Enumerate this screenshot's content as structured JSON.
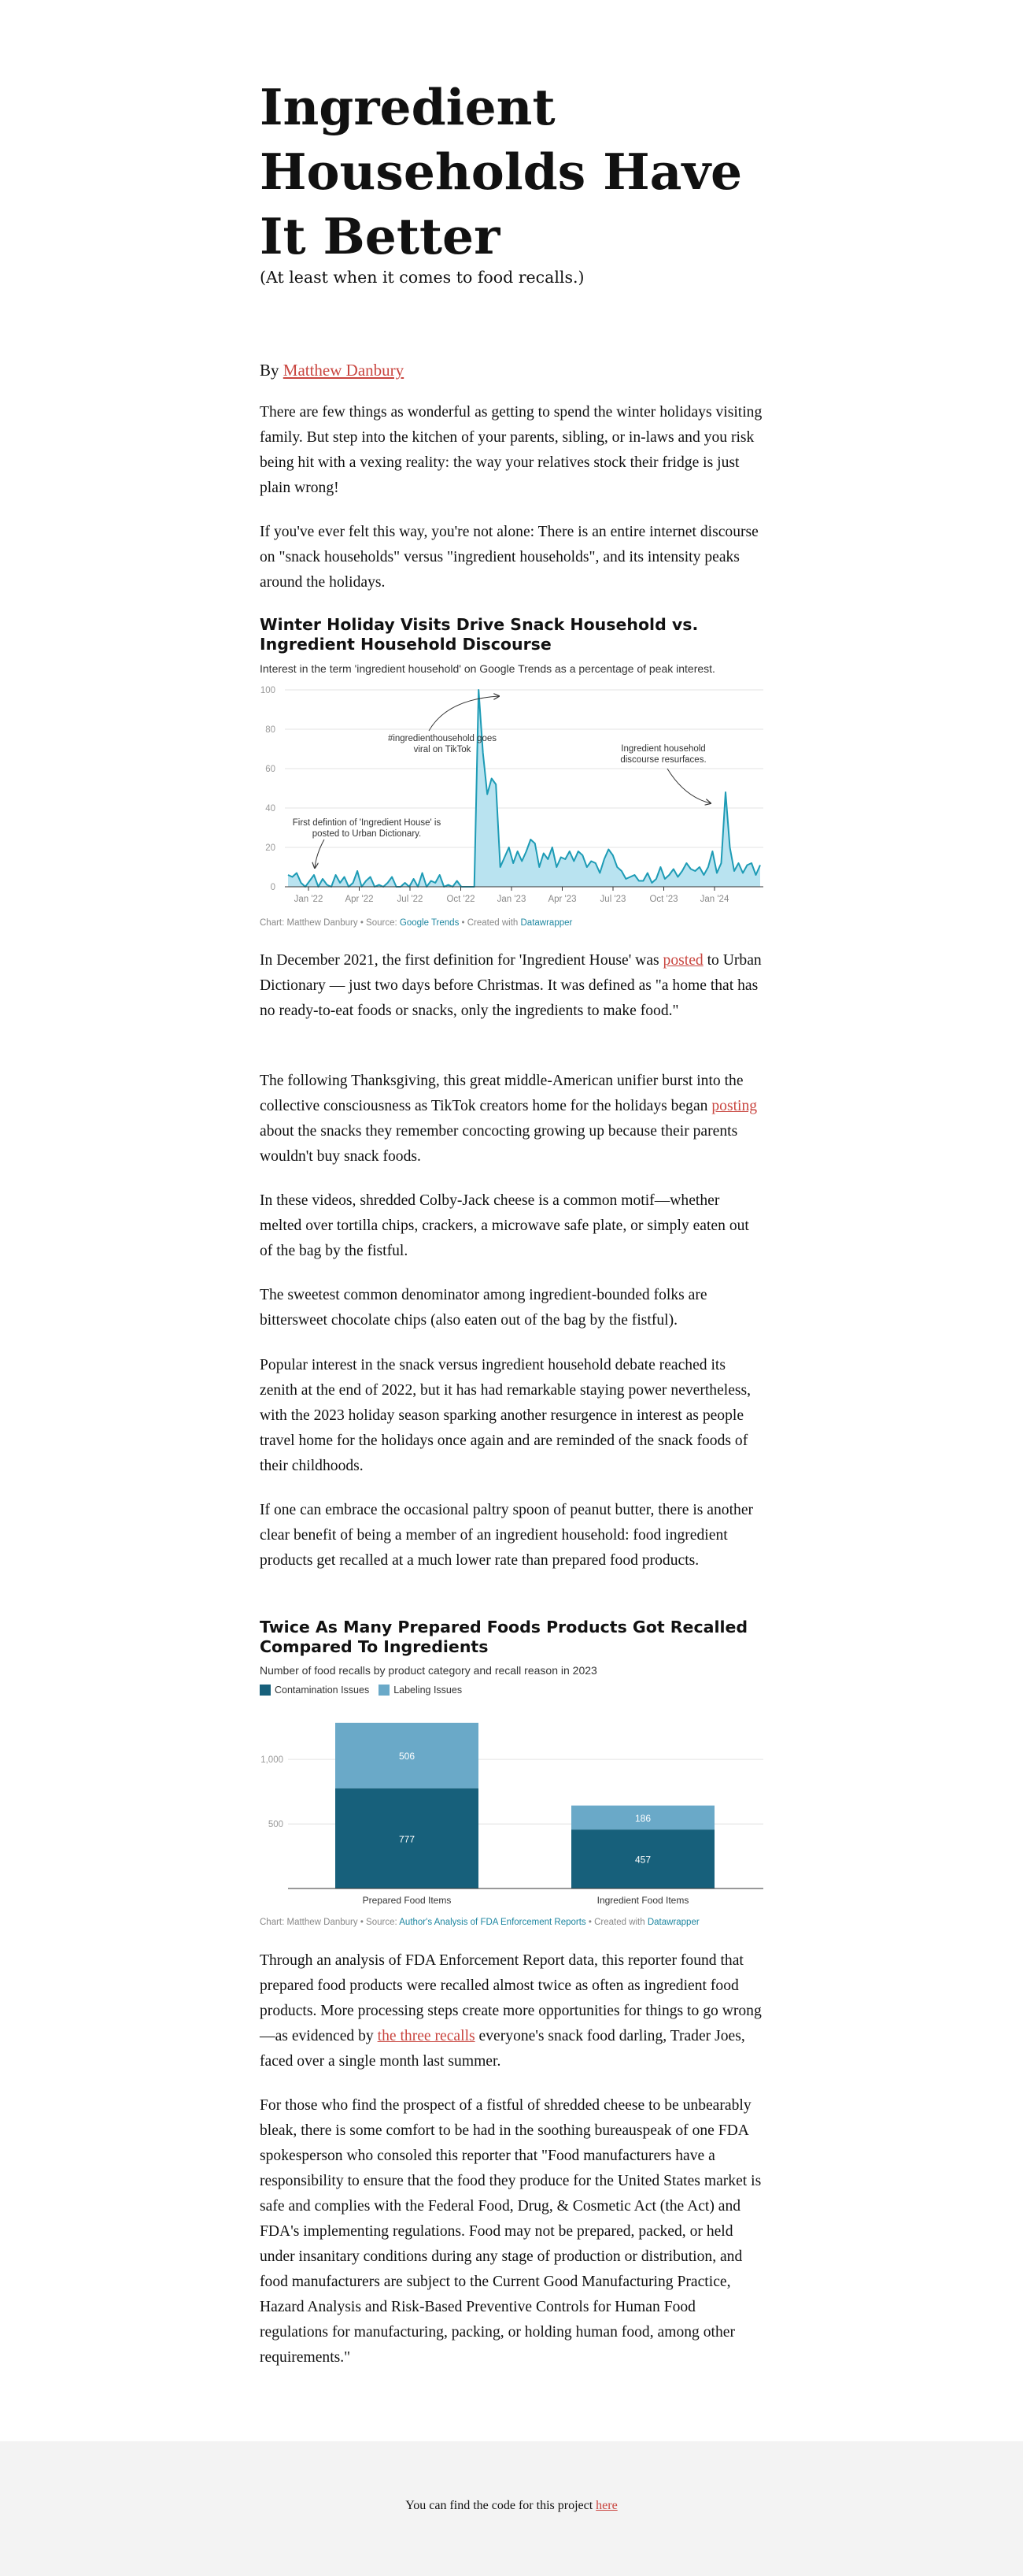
{
  "article": {
    "title": "Ingredient Households Have It Better",
    "subtitle": "(At least when it comes to food recalls.)",
    "byline_prefix": "By ",
    "author": "Matthew Danbury",
    "p1": "There are few things as wonderful as getting to spend the winter holidays visiting family. But step into the kitchen of your parents, sibling, or in-laws and you risk being hit with a vexing reality: the way your relatives stock their fridge is just plain wrong!",
    "p2": "If you've ever felt this way, you're not alone: There is an entire internet discourse on \"snack households\" versus \"ingredient households\", and its intensity peaks around the holidays.",
    "p3_a": "In December 2021, the first definition for 'Ingredient House' was ",
    "p3_link": "posted",
    "p3_b": " to Urban Dictionary — just two days before Christmas. It was defined as \"a home that has no ready-to-eat foods or snacks, only the ingredients to make food.\"",
    "p4_a": "The following Thanksgiving, this great middle-American unifier burst into the collective consciousness as TikTok creators home for the holidays began ",
    "p4_link": "posting",
    "p4_b": " about the snacks they remember concocting growing up because their parents wouldn't buy snack foods.",
    "p5": "In these videos, shredded Colby-Jack cheese is a common motif—whether melted over tortilla chips, crackers, a microwave safe plate, or simply eaten out of the bag by the fistful.",
    "p6": "The sweetest common denominator among ingredient-bounded folks are bittersweet chocolate chips (also eaten out of the bag by the fistful).",
    "p7": "Popular interest in the snack versus ingredient household debate reached its zenith at the end of 2022, but it has had remarkable staying power nevertheless, with the 2023 holiday season sparking another resurgence in interest as people travel home for the holidays once again and are reminded of the snack foods of their childhoods.",
    "p8": "If one can embrace the occasional paltry spoon of peanut butter, there is another clear benefit of being a member of an ingredient household: food ingredient products get recalled at a much lower rate than prepared food products.",
    "p9_a": "Through an analysis of FDA Enforcement Report data, this reporter found that prepared food products were recalled almost twice as often as ingredient food products. More processing steps create more opportunities for things to go wrong—as evidenced by ",
    "p9_link": "the three recalls",
    "p9_b": " everyone's snack food darling, Trader Joes, faced over a single month last summer.",
    "p10": "For those who find the prospect of a fistful of shredded cheese to be unbearably bleak, there is some comfort to be had in the soothing bureauspeak of one FDA spokesperson who consoled this reporter that \"Food manufacturers have a responsibility to ensure that the food they produce for the United States market is safe and complies with the Federal Food, Drug, & Cosmetic Act (the Act) and FDA's implementing regulations. Food may not be prepared, packed, or held under insanitary conditions during any stage of production or distribution, and food manufacturers are subject to the Current Good Manufacturing Practice, Hazard Analysis and Risk-Based Preventive Controls for Human Food regulations for manufacturing, packing, or holding human food, among other requirements.\""
  },
  "chart1": {
    "source_prefix": "Chart: Matthew Danbury • Source: ",
    "source_link": "Google Trends",
    "created_prefix": " • Created with ",
    "created_link": "Datawrapper"
  },
  "chart2": {
    "source_prefix": "Chart: Matthew Danbury • Source: ",
    "source_link": "Author's Analysis of FDA Enforcement Reports",
    "created_prefix": " • Created with ",
    "created_link": "Datawrapper"
  },
  "footer": {
    "text_prefix": "You can find the code for this project ",
    "link": "here"
  },
  "colors": {
    "accent_link": "#c9453f",
    "line": "#1d9bb5",
    "area": "#b9e3f0",
    "contamination": "#17607b",
    "labeling": "#6aa9c8"
  },
  "chart_data": [
    {
      "type": "area",
      "title": "Winter Holiday Visits Drive Snack Household vs. Ingredient Household Discourse",
      "subtitle": "Interest in the term 'ingredient household' on Google Trends as a percentage of peak interest.",
      "y_ticks": [
        "0",
        "20",
        "40",
        "60",
        "80",
        "100"
      ],
      "ylim": [
        0,
        100
      ],
      "x_ticks": [
        "Jan '22",
        "Apr '22",
        "Jul '22",
        "Oct '22",
        "Jan '23",
        "Apr '23",
        "Jul '23",
        "Oct '23",
        "Jan '24"
      ],
      "grid": true,
      "values": [
        6,
        5,
        7,
        2,
        0,
        3,
        6,
        0,
        4,
        1,
        0,
        6,
        2,
        5,
        0,
        2,
        8,
        0,
        3,
        5,
        0,
        1,
        0,
        2,
        5,
        0,
        0,
        2,
        0,
        4,
        0,
        7,
        0,
        3,
        2,
        6,
        0,
        1,
        0,
        3,
        0,
        0,
        0,
        0,
        100,
        68,
        47,
        55,
        52,
        10,
        15,
        20,
        12,
        18,
        13,
        18,
        24,
        22,
        10,
        17,
        14,
        20,
        10,
        15,
        14,
        18,
        13,
        18,
        16,
        10,
        13,
        12,
        7,
        14,
        19,
        16,
        10,
        8,
        4,
        5,
        6,
        3,
        3,
        7,
        2,
        4,
        10,
        4,
        6,
        9,
        5,
        8,
        12,
        9,
        8,
        10,
        6,
        10,
        18,
        7,
        12,
        48,
        20,
        8,
        12,
        7,
        11,
        12,
        6,
        11
      ],
      "annotations": [
        {
          "text": [
            "First defintion of 'Ingredient House' is",
            "posted to Urban Dictionary."
          ]
        },
        {
          "text": [
            "#ingredienthousehold goes",
            "viral on TikTok"
          ]
        },
        {
          "text": [
            "Ingredient household",
            "discourse resurfaces."
          ]
        }
      ]
    },
    {
      "type": "bar",
      "stacked": true,
      "title": "Twice As Many Prepared Foods Products Got Recalled Compared To Ingredients",
      "subtitle": "Number of food recalls by product category and recall reason in 2023",
      "categories": [
        "Prepared Food Items",
        "Ingredient Food Items"
      ],
      "series": [
        {
          "name": "Contamination Issues",
          "values": [
            777,
            457
          ]
        },
        {
          "name": "Labeling Issues",
          "values": [
            506,
            186
          ]
        }
      ],
      "y_ticks": [
        "500",
        "1,000"
      ],
      "ylim": [
        0,
        1300
      ],
      "legend": "top-left",
      "grid": true
    }
  ]
}
